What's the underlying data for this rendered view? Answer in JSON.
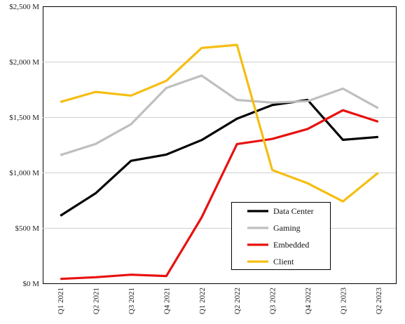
{
  "chart_data": {
    "type": "line",
    "categories": [
      "Q1 2021",
      "Q2 2021",
      "Q3 2021",
      "Q4 2021",
      "Q1 2022",
      "Q2 2022",
      "Q3 2022",
      "Q4 2022",
      "Q1 2023",
      "Q2 2023"
    ],
    "y_tick_values": [
      0,
      500,
      1000,
      1500,
      2000,
      2500
    ],
    "y_tick_labels": [
      "$0 M",
      "$500 M",
      "$1,000 M",
      "$1,500 M",
      "$2,000 M",
      "$2,500 M"
    ],
    "ylim": [
      0,
      2500
    ],
    "grid": true,
    "legend_position": "bottom-right",
    "series": [
      {
        "name": "Data Center",
        "color": "#000000",
        "values": [
          610,
          813,
          1106,
          1162,
          1293,
          1486,
          1609,
          1655,
          1295,
          1321
        ]
      },
      {
        "name": "Gaming",
        "color": "#bfbfbf",
        "values": [
          1157,
          1258,
          1436,
          1763,
          1875,
          1655,
          1631,
          1644,
          1757,
          1581
        ]
      },
      {
        "name": "Embedded",
        "color": "#e8110f",
        "values": [
          40,
          55,
          78,
          66,
          595,
          1257,
          1303,
          1393,
          1562,
          1459
        ]
      },
      {
        "name": "Client",
        "color": "#f5be12",
        "values": [
          1637,
          1728,
          1694,
          1828,
          2124,
          2152,
          1022,
          903,
          739,
          998
        ]
      }
    ]
  }
}
